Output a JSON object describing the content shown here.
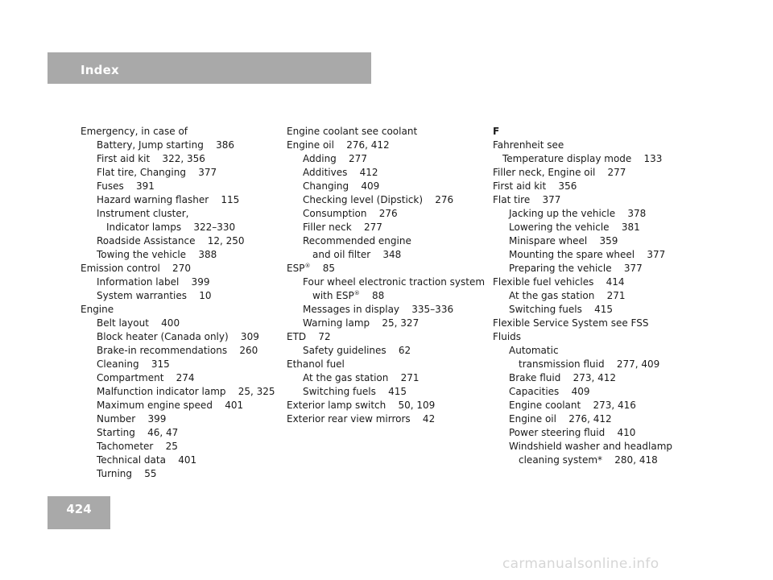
{
  "header": {
    "title": "Index"
  },
  "page": {
    "number": "424"
  },
  "columns": [
    {
      "entries": [
        {
          "text": "Emergency, in case of",
          "level": 0
        },
        {
          "text": "Battery, Jump starting    386",
          "level": 1
        },
        {
          "text": "First aid kit    322, 356",
          "level": 1
        },
        {
          "text": "Flat tire, Changing    377",
          "level": 1
        },
        {
          "text": "Fuses    391",
          "level": 1
        },
        {
          "text": "Hazard warning flasher    115",
          "level": 1
        },
        {
          "text": "Instrument cluster,",
          "level": 1
        },
        {
          "text": "Indicator lamps    322–330",
          "level": 2
        },
        {
          "text": "Roadside Assistance    12, 250",
          "level": 1
        },
        {
          "text": "Towing the vehicle    388",
          "level": 1
        },
        {
          "text": "Emission control    270",
          "level": 0
        },
        {
          "text": "Information label    399",
          "level": 1
        },
        {
          "text": "System warranties    10",
          "level": 1
        },
        {
          "text": "Engine",
          "level": 0
        },
        {
          "text": "Belt layout    400",
          "level": 1
        },
        {
          "text": "Block heater (Canada only)    309",
          "level": 1
        },
        {
          "text": "Brake-in recommendations    260",
          "level": 1
        },
        {
          "text": "Cleaning    315",
          "level": 1
        },
        {
          "text": "Compartment    274",
          "level": 1
        },
        {
          "text": "Malfunction indicator lamp    25, 325",
          "level": 1
        },
        {
          "text": "Maximum engine speed    401",
          "level": 1
        },
        {
          "text": "Number    399",
          "level": 1
        },
        {
          "text": "Starting    46, 47",
          "level": 1
        },
        {
          "text": "Tachometer    25",
          "level": 1
        },
        {
          "text": "Technical data    401",
          "level": 1
        },
        {
          "text": "Turning    55",
          "level": 1
        }
      ]
    },
    {
      "entries": [
        {
          "text": "Engine coolant see coolant",
          "level": 0
        },
        {
          "text": "Engine oil    276, 412",
          "level": 0
        },
        {
          "text": "Adding    277",
          "level": 1
        },
        {
          "text": "Additives    412",
          "level": 1
        },
        {
          "text": "Changing    409",
          "level": 1
        },
        {
          "text": "Checking level (Dipstick)    276",
          "level": 1
        },
        {
          "text": "Consumption    276",
          "level": 1
        },
        {
          "text": "Filler neck    277",
          "level": 1
        },
        {
          "text": "Recommended engine",
          "level": 1
        },
        {
          "text": "and oil filter    348",
          "level": 2
        },
        {
          "text": "ESP",
          "sup": "®",
          "tail": "    85",
          "level": 0
        },
        {
          "text": "Four wheel electronic traction system",
          "level": 1
        },
        {
          "text": "with ESP",
          "sup": "®",
          "tail": "    88",
          "level": 2
        },
        {
          "text": "Messages in display    335–336",
          "level": 1
        },
        {
          "text": "Warning lamp    25, 327",
          "level": 1
        },
        {
          "text": "ETD    72",
          "level": 0
        },
        {
          "text": "Safety guidelines    62",
          "level": 1
        },
        {
          "text": "Ethanol fuel",
          "level": 0
        },
        {
          "text": "At the gas station    271",
          "level": 1
        },
        {
          "text": "Switching fuels    415",
          "level": 1
        },
        {
          "text": "Exterior lamp switch    50, 109",
          "level": 0
        },
        {
          "text": "Exterior rear view mirrors    42",
          "level": 0
        }
      ]
    },
    {
      "entries": [
        {
          "text": "F",
          "level": 0,
          "letter": true
        },
        {
          "text": "Fahrenheit see",
          "level": 0
        },
        {
          "text": "Temperature display mode    133",
          "level": 3
        },
        {
          "text": "Filler neck, Engine oil    277",
          "level": 0
        },
        {
          "text": "First aid kit    356",
          "level": 0
        },
        {
          "text": "Flat tire    377",
          "level": 0
        },
        {
          "text": "Jacking up the vehicle    378",
          "level": 1
        },
        {
          "text": "Lowering the vehicle    381",
          "level": 1
        },
        {
          "text": "Minispare wheel    359",
          "level": 1
        },
        {
          "text": "Mounting the spare wheel    377",
          "level": 1
        },
        {
          "text": "Preparing the vehicle    377",
          "level": 1
        },
        {
          "text": "Flexible fuel vehicles    414",
          "level": 0
        },
        {
          "text": "At the gas station    271",
          "level": 1
        },
        {
          "text": "Switching fuels    415",
          "level": 1
        },
        {
          "text": "Flexible Service System see FSS",
          "level": 0
        },
        {
          "text": "Fluids",
          "level": 0
        },
        {
          "text": "Automatic",
          "level": 1
        },
        {
          "text": "transmission fluid    277, 409",
          "level": 2
        },
        {
          "text": "Brake fluid    273, 412",
          "level": 1
        },
        {
          "text": "Capacities    409",
          "level": 1
        },
        {
          "text": "Engine coolant    273, 416",
          "level": 1
        },
        {
          "text": "Engine oil    276, 412",
          "level": 1
        },
        {
          "text": "Power steering fluid    410",
          "level": 1
        },
        {
          "text": "Windshield washer and headlamp",
          "level": 1
        },
        {
          "text": "cleaning system*    280, 418",
          "level": 2
        }
      ]
    }
  ],
  "watermark": {
    "text": "carmanualsonline.info"
  }
}
